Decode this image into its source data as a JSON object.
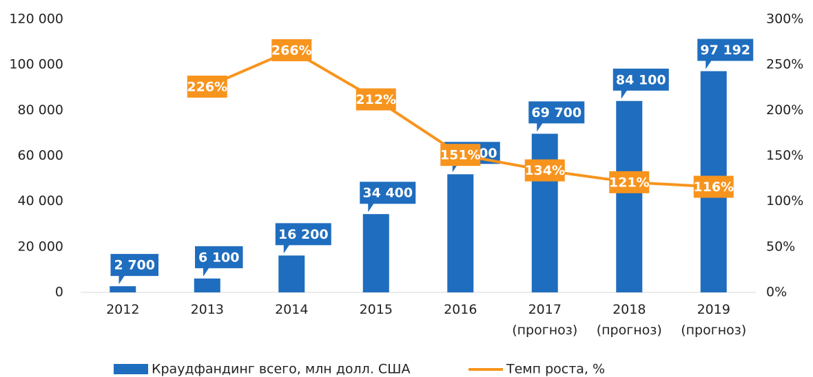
{
  "chart_data": {
    "type": "bar-line",
    "categories": [
      "2012",
      "2013",
      "2014",
      "2015",
      "2016",
      "2017\n(прогноз)",
      "2018\n(прогноз)",
      "2019\n(прогноз)"
    ],
    "series": [
      {
        "name": "Краудфандинг всего, млн долл. США",
        "color": "#1f6dbe",
        "type": "bar",
        "values": [
          2700,
          6100,
          16200,
          34400,
          51900,
          69700,
          84100,
          97192
        ],
        "value_labels": [
          "2 700",
          "6 100",
          "16 200",
          "34 400",
          "51 900",
          "69 700",
          "84 100",
          "97 192"
        ]
      },
      {
        "name": "Темп роста, %",
        "color": "#f7941d",
        "type": "line",
        "axis": "y2",
        "values": [
          null,
          226,
          266,
          212,
          151,
          134,
          121,
          116
        ],
        "value_labels": [
          null,
          "226%",
          "266%",
          "212%",
          "151%",
          "134%",
          "121%",
          "116%"
        ]
      }
    ],
    "ylim": [
      0,
      120000
    ],
    "yticks": [
      {
        "value": 0,
        "label": "0"
      },
      {
        "value": 20000,
        "label": "20 000"
      },
      {
        "value": 40000,
        "label": "40 000"
      },
      {
        "value": 60000,
        "label": "60 000"
      },
      {
        "value": 80000,
        "label": "80 000"
      },
      {
        "value": 100000,
        "label": "100 000"
      },
      {
        "value": 120000,
        "label": "120 000"
      }
    ],
    "y2lim": [
      0,
      300
    ],
    "y2ticks": [
      {
        "value": 0,
        "label": "0%"
      },
      {
        "value": 50,
        "label": "50%"
      },
      {
        "value": 100,
        "label": "100%"
      },
      {
        "value": 150,
        "label": "150%"
      },
      {
        "value": 200,
        "label": "200%"
      },
      {
        "value": 250,
        "label": "250%"
      },
      {
        "value": 300,
        "label": "300%"
      }
    ],
    "legend": "bottom"
  }
}
